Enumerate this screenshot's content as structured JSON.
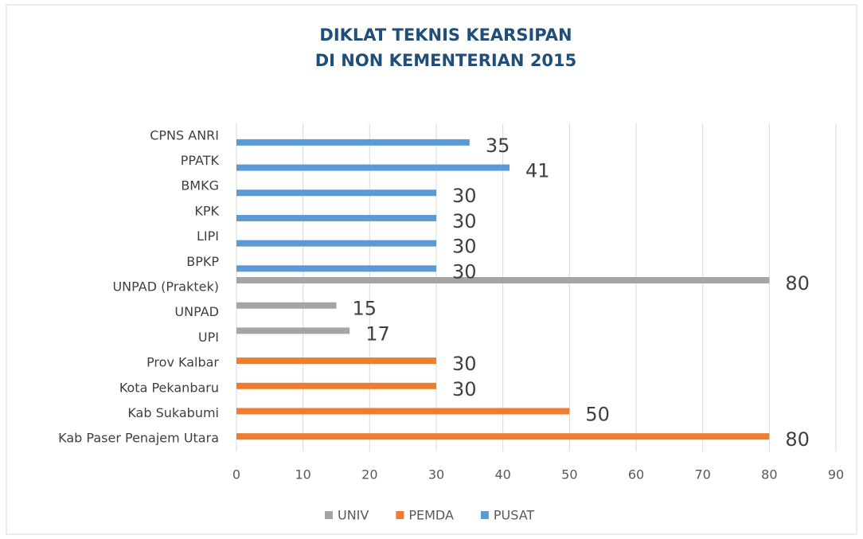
{
  "chart_data": {
    "type": "bar",
    "orientation": "horizontal",
    "title": [
      "DIKLAT TEKNIS KEARSIPAN",
      "DI NON KEMENTERIAN 2015"
    ],
    "categories": [
      "CPNS ANRI",
      "PPATK",
      "BMKG",
      "KPK",
      "LIPI",
      "BPKP",
      "UNPAD (Praktek)",
      "UNPAD",
      "UPI",
      "Prov Kalbar",
      "Kota Pekanbaru",
      "Kab Sukabumi",
      "Kab Paser Penajem Utara"
    ],
    "series": [
      {
        "name": "UNIV",
        "color": "#a5a5a5",
        "values": [
          null,
          null,
          null,
          null,
          null,
          null,
          80,
          15,
          17,
          null,
          null,
          null,
          null
        ]
      },
      {
        "name": "PEMDA",
        "color": "#ed7d31",
        "values": [
          null,
          null,
          null,
          null,
          null,
          null,
          null,
          null,
          null,
          30,
          30,
          50,
          80
        ]
      },
      {
        "name": "PUSAT",
        "color": "#5b9bd5",
        "values": [
          35,
          41,
          30,
          30,
          30,
          30,
          null,
          null,
          null,
          null,
          null,
          null,
          null
        ]
      }
    ],
    "xlim": [
      0,
      90
    ],
    "xticks": [
      0,
      10,
      20,
      30,
      40,
      50,
      60,
      70,
      80,
      90
    ],
    "grid": true,
    "legend": "bottom"
  }
}
